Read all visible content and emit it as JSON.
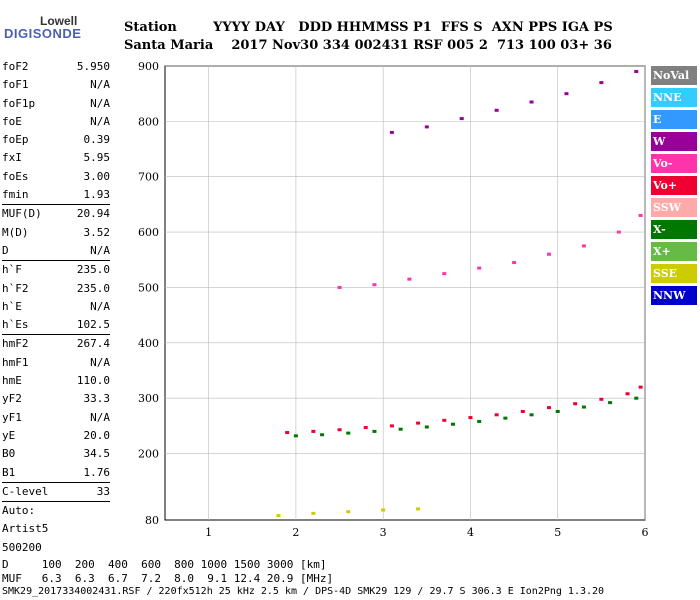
{
  "logo": {
    "top": "Lowell",
    "bottom": "DIGISONDE"
  },
  "header": {
    "row1": "Station        YYYY DAY   DDD HHMMSS P1  FFS S  AXN PPS IGA PS",
    "row2": "Santa Maria    2017 Nov30 334 002431 RSF 005 2  713 100 03+ 36"
  },
  "params": [
    {
      "k": "foF2",
      "v": "5.950"
    },
    {
      "k": "foF1",
      "v": "N/A"
    },
    {
      "k": "foF1p",
      "v": "N/A"
    },
    {
      "k": "foE",
      "v": "N/A"
    },
    {
      "k": "foEp",
      "v": "0.39"
    },
    {
      "k": "fxI",
      "v": "5.95"
    },
    {
      "k": "foEs",
      "v": "3.00"
    },
    {
      "k": "fmin",
      "v": "1.93"
    },
    {
      "sep": true
    },
    {
      "k": "MUF(D)",
      "v": "20.94"
    },
    {
      "k": "M(D)",
      "v": "3.52"
    },
    {
      "k": "D",
      "v": "N/A"
    },
    {
      "sep": true
    },
    {
      "k": "h`F",
      "v": "235.0"
    },
    {
      "k": "h`F2",
      "v": "235.0"
    },
    {
      "k": "h`E",
      "v": "N/A"
    },
    {
      "k": "h`Es",
      "v": "102.5"
    },
    {
      "sep": true
    },
    {
      "k": "hmF2",
      "v": "267.4"
    },
    {
      "k": "hmF1",
      "v": "N/A"
    },
    {
      "k": "hmE",
      "v": "110.0"
    },
    {
      "k": "yF2",
      "v": "33.3"
    },
    {
      "k": "yF1",
      "v": "N/A"
    },
    {
      "k": "yE",
      "v": "20.0"
    },
    {
      "k": "B0",
      "v": "34.5"
    },
    {
      "k": "B1",
      "v": "1.76"
    },
    {
      "sep": true
    },
    {
      "k": "C-level",
      "v": "33"
    },
    {
      "sep": true
    },
    {
      "k": "Auto:",
      "v": ""
    },
    {
      "k": "Artist5",
      "v": ""
    },
    {
      "k": "500200",
      "v": ""
    }
  ],
  "legend": [
    {
      "label": "NoVal",
      "color": "#808080"
    },
    {
      "label": "NNE",
      "color": "#33ccff"
    },
    {
      "label": "E",
      "color": "#3399ff"
    },
    {
      "label": "W",
      "color": "#990099"
    },
    {
      "label": "Vo-",
      "color": "#ff33aa"
    },
    {
      "label": "Vo+",
      "color": "#ee0033"
    },
    {
      "label": "SSW",
      "color": "#ffaaaa"
    },
    {
      "label": "X-",
      "color": "#007700"
    },
    {
      "label": "X+",
      "color": "#66bb44"
    },
    {
      "label": "SSE",
      "color": "#cccc00"
    },
    {
      "label": "NNW",
      "color": "#0000cc"
    }
  ],
  "footer": {
    "d_row": "D     100  200  400  600  800 1000 1500 3000 [km]",
    "muf_row": "MUF   6.3  6.3  6.7  7.2  8.0  9.1 12.4 20.9 [MHz]",
    "info": "SMK29_2017334002431.RSF / 220fx512h 25 kHz 2.5 km / DPS-4D SMK29 129 / 29.7 S 306.3 E Ion2Png 1.3.20"
  },
  "chart_data": {
    "type": "scatter",
    "xlim": [
      0.5,
      6
    ],
    "ylim": [
      80,
      900
    ],
    "xticks": [
      "1",
      "2",
      "3",
      "4",
      "5",
      "6"
    ],
    "yticks": [
      "200",
      "300",
      "400",
      "500",
      "600",
      "700",
      "800",
      "900"
    ],
    "yticks_bottom": "80",
    "grid": true,
    "series": [
      {
        "name": "Vo+",
        "color": "#ee0033",
        "x": [
          1.9,
          2.2,
          2.5,
          2.8,
          3.1,
          3.4,
          3.7,
          4.0,
          4.3,
          4.6,
          4.9,
          5.2,
          5.5,
          5.8,
          5.95
        ],
        "y": [
          238,
          240,
          243,
          247,
          250,
          255,
          260,
          265,
          270,
          276,
          283,
          290,
          298,
          308,
          320
        ]
      },
      {
        "name": "X-",
        "color": "#007700",
        "x": [
          2.0,
          2.3,
          2.6,
          2.9,
          3.2,
          3.5,
          3.8,
          4.1,
          4.4,
          4.7,
          5.0,
          5.3,
          5.6,
          5.9
        ],
        "y": [
          232,
          234,
          237,
          240,
          244,
          248,
          253,
          258,
          264,
          270,
          276,
          284,
          292,
          300
        ]
      },
      {
        "name": "W",
        "color": "#990099",
        "x": [
          3.1,
          3.5,
          3.9,
          4.3,
          4.7,
          5.1,
          5.5,
          5.9
        ],
        "y": [
          780,
          790,
          805,
          820,
          835,
          850,
          870,
          890
        ]
      },
      {
        "name": "Vo-",
        "color": "#ff33aa",
        "x": [
          2.5,
          2.9,
          3.3,
          3.7,
          4.1,
          4.5,
          4.9,
          5.3,
          5.7,
          5.95
        ],
        "y": [
          500,
          505,
          515,
          525,
          535,
          545,
          560,
          575,
          600,
          630
        ]
      },
      {
        "name": "SSE",
        "color": "#cccc00",
        "x": [
          1.8,
          2.2,
          2.6,
          3.0,
          3.4
        ],
        "y": [
          88,
          92,
          95,
          98,
          100
        ]
      }
    ]
  }
}
